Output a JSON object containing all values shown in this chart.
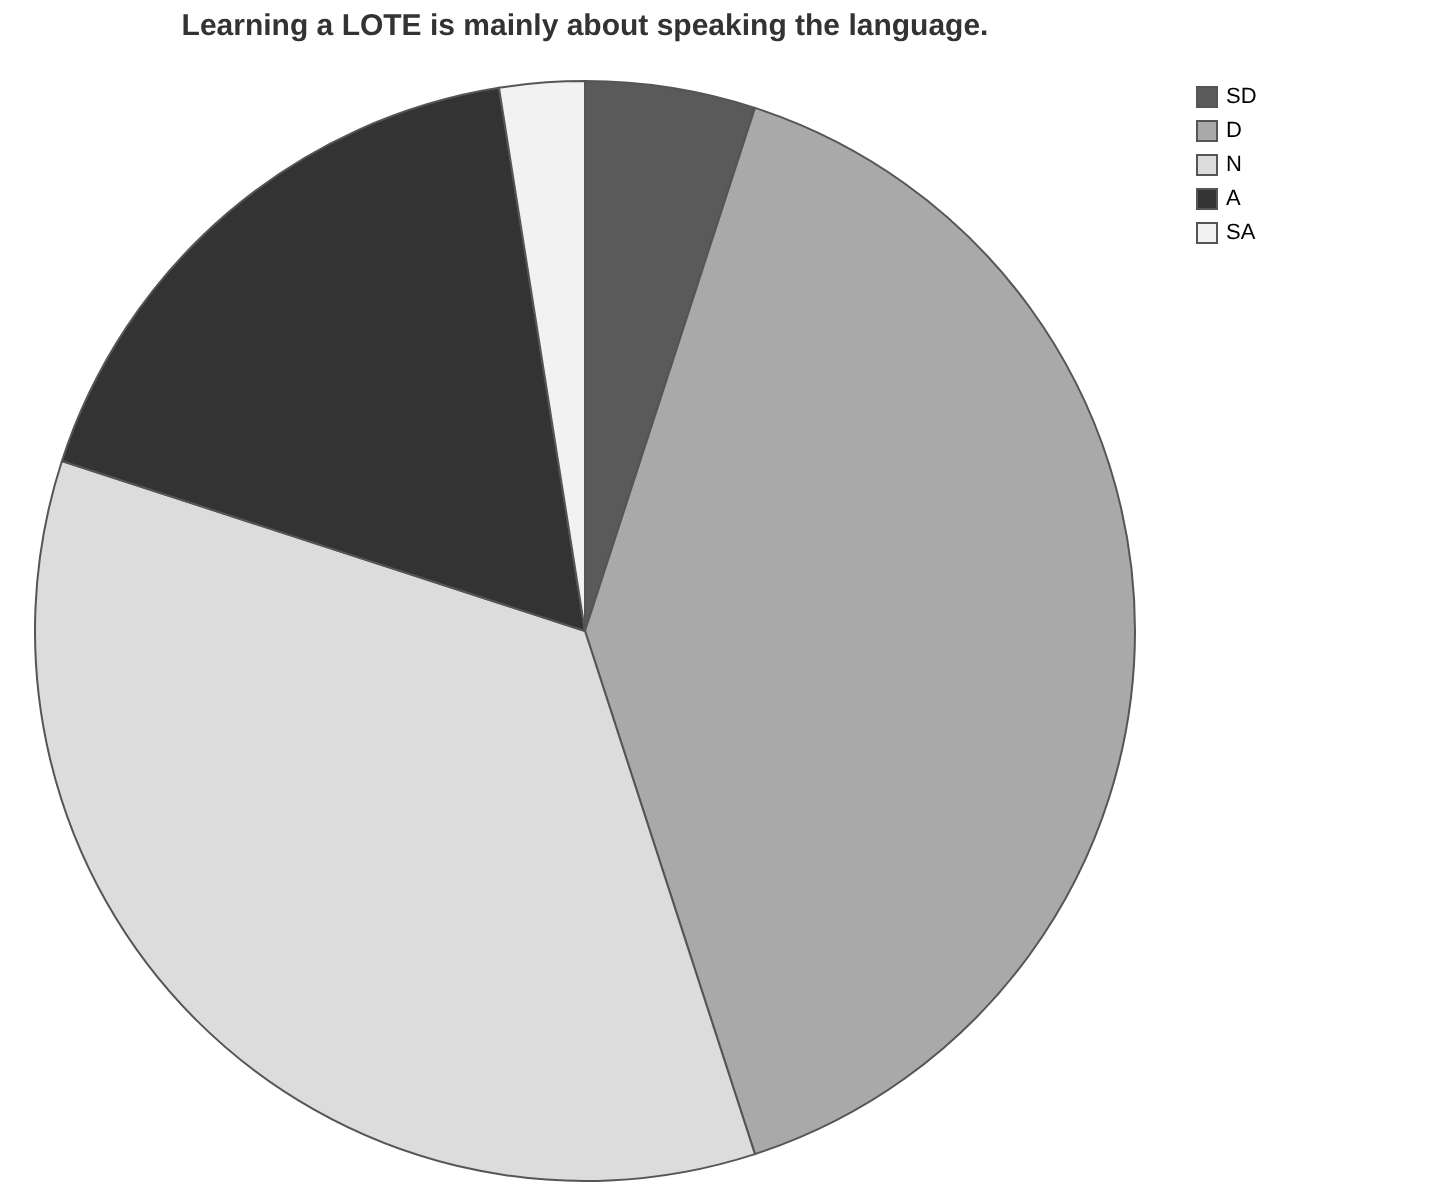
{
  "chart_data": {
    "type": "pie",
    "title": "Learning a LOTE is mainly about speaking the language.",
    "categories": [
      "SD",
      "D",
      "N",
      "A",
      "SA"
    ],
    "values": [
      5,
      40,
      35,
      17.5,
      2.5
    ],
    "colors": [
      "#5a5a5a",
      "#a9a9a9",
      "#dcdcdc",
      "#333333",
      "#f2f2f2"
    ],
    "legend": "top right"
  }
}
